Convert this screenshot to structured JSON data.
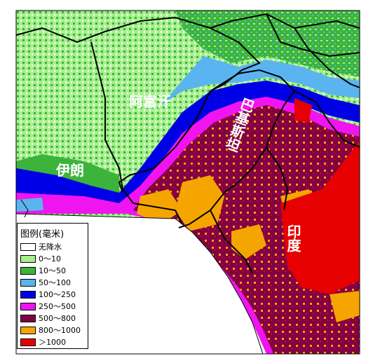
{
  "map": {
    "labels": {
      "afghanistan": "阿富汗",
      "iran": "伊朗",
      "pakistan": "巴基斯坦",
      "india": "印度"
    }
  },
  "legend": {
    "title": "图例(毫米)",
    "items": [
      {
        "label": "无降水",
        "color": "#ffffff"
      },
      {
        "label": "0～10",
        "color": "#a6f08c"
      },
      {
        "label": "10～50",
        "color": "#3cb43c"
      },
      {
        "label": "50～100",
        "color": "#5ab4f0"
      },
      {
        "label": "100～250",
        "color": "#0000e6"
      },
      {
        "label": "250～500",
        "color": "#f014f0"
      },
      {
        "label": "500～800",
        "color": "#820046"
      },
      {
        "label": "800～1000",
        "color": "#f5a500"
      },
      {
        "label": "＞1000",
        "color": "#e60000"
      }
    ]
  }
}
